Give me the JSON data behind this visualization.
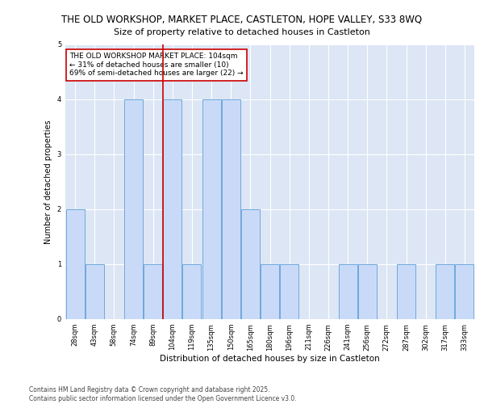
{
  "title1": "THE OLD WORKSHOP, MARKET PLACE, CASTLETON, HOPE VALLEY, S33 8WQ",
  "title2": "Size of property relative to detached houses in Castleton",
  "xlabel": "Distribution of detached houses by size in Castleton",
  "ylabel": "Number of detached properties",
  "categories": [
    "28sqm",
    "43sqm",
    "58sqm",
    "74sqm",
    "89sqm",
    "104sqm",
    "119sqm",
    "135sqm",
    "150sqm",
    "165sqm",
    "180sqm",
    "196sqm",
    "211sqm",
    "226sqm",
    "241sqm",
    "256sqm",
    "272sqm",
    "287sqm",
    "302sqm",
    "317sqm",
    "333sqm"
  ],
  "values": [
    2,
    1,
    0,
    4,
    1,
    4,
    1,
    4,
    4,
    2,
    1,
    1,
    0,
    0,
    1,
    1,
    0,
    1,
    0,
    1,
    1
  ],
  "highlight_index": 5,
  "bar_color": "#c9daf8",
  "bar_edge_color": "#6fa8dc",
  "highlight_line_color": "#cc0000",
  "annotation_text": "THE OLD WORKSHOP MARKET PLACE: 104sqm\n← 31% of detached houses are smaller (10)\n69% of semi-detached houses are larger (22) →",
  "footer": "Contains HM Land Registry data © Crown copyright and database right 2025.\nContains public sector information licensed under the Open Government Licence v3.0.",
  "ylim": [
    0,
    5
  ],
  "yticks": [
    0,
    1,
    2,
    3,
    4,
    5
  ],
  "title1_fontsize": 8.5,
  "title2_fontsize": 8,
  "xlabel_fontsize": 7.5,
  "ylabel_fontsize": 7,
  "tick_fontsize": 6,
  "annotation_fontsize": 6.5,
  "footer_fontsize": 5.5,
  "background_color": "#ffffff",
  "plot_bg_color": "#dce6f5"
}
